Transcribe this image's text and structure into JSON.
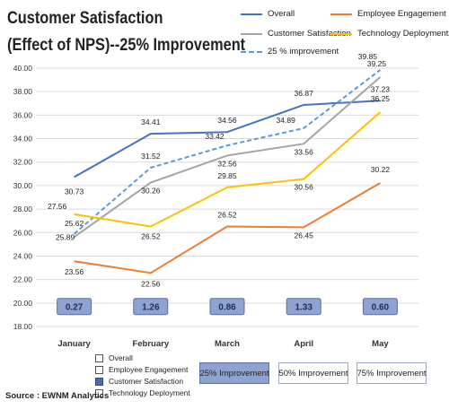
{
  "title_line1": "Customer Satisfaction",
  "title_line2": "(Effect of NPS)--25% Improvement",
  "source": "Source : EWNM Analytics",
  "colors": {
    "overall": "#4472c4",
    "customer_satisfaction": "#a5a5a5",
    "improvement": "#5b9bd5",
    "employee_engagement": "#ed7d31",
    "technology_deployment": "#ffc000",
    "nps_box": "#8ea3d1"
  },
  "legend": {
    "overall": "Overall",
    "customer_satisfaction": "Customer Satisfaction",
    "improvement": "25 % improvement",
    "employee_engagement": "Employee Engagement",
    "technology_deployment": "Technology Deployment"
  },
  "series_table": [
    {
      "label": "Overall",
      "selected": false
    },
    {
      "label": "Employee Engagement",
      "selected": false
    },
    {
      "label": "Customer Satisfaction",
      "selected": true
    },
    {
      "label": "Technology Deployment",
      "selected": false
    }
  ],
  "improvement_buttons": [
    {
      "label": "25% Improvement",
      "active": true
    },
    {
      "label": "50% Improvement",
      "active": false
    },
    {
      "label": "75% Improvement",
      "active": false
    }
  ],
  "chart_data": {
    "type": "line",
    "categories": [
      "January",
      "February",
      "March",
      "April",
      "May"
    ],
    "ylim": [
      18,
      40
    ],
    "yticks": [
      "18.00",
      "20.00",
      "22.00",
      "24.00",
      "26.00",
      "28.00",
      "30.00",
      "32.00",
      "34.00",
      "36.00",
      "38.00",
      "40.00"
    ],
    "series": [
      {
        "name": "Overall",
        "key": "overall",
        "values": [
          30.73,
          34.41,
          34.56,
          36.87,
          37.23
        ],
        "labels": [
          "30.73",
          "34.41",
          "34.56",
          "36.87",
          "37.23"
        ]
      },
      {
        "name": "Customer Satisfaction",
        "key": "customer_satisfaction",
        "values": [
          25.62,
          30.26,
          32.56,
          33.56,
          39.25
        ],
        "labels": [
          "25.62",
          "30.26",
          "32.56",
          "33.56",
          "39.25"
        ]
      },
      {
        "name": "25 % improvement",
        "key": "improvement",
        "values": [
          25.89,
          31.52,
          33.42,
          34.89,
          39.85
        ],
        "labels": [
          "25.89",
          "31.52",
          "33.42",
          "34.89",
          "39.85"
        ]
      },
      {
        "name": "Employee Engagement",
        "key": "employee_engagement",
        "values": [
          23.56,
          22.56,
          26.52,
          26.45,
          30.22
        ],
        "labels": [
          "23.56",
          "22.56",
          "26.52",
          "26.45",
          "30.22"
        ]
      },
      {
        "name": "Technology Deployment",
        "key": "technology_deployment",
        "values": [
          27.56,
          26.52,
          29.85,
          30.56,
          36.25
        ],
        "labels": [
          "27.56",
          "26.52",
          "29.85",
          "30.56",
          "36.25"
        ]
      }
    ],
    "nps_values": [
      "0.27",
      "1.26",
      "0.86",
      "1.33",
      "0.60"
    ]
  }
}
